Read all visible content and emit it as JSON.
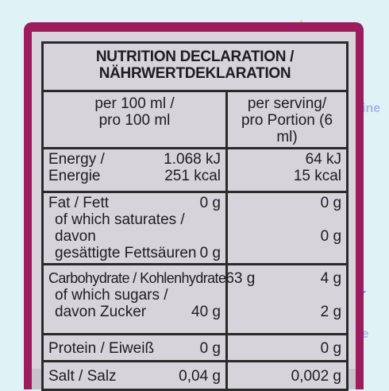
{
  "decor": {
    "star_icon": "star-icon",
    "faint_brand_1": "ine",
    "faint_brand_2": "tine"
  },
  "label": {
    "title_line1": "NUTRITION DECLARATION /",
    "title_line2": "NÄHRWERTDEKLARATION",
    "col1_head_line1": "per 100 ml /",
    "col1_head_line2": "pro 100 ml",
    "col2_head_line1": "per serving/",
    "col2_head_line2": "pro Portion (6 ml)",
    "rows": {
      "energy": {
        "name_line1": "Energy /",
        "name_line2": "Energie",
        "per100_line1": "1.068 kJ",
        "per100_line2": "251 kcal",
        "serving_line1": "64 kJ",
        "serving_line2": "15 kcal"
      },
      "fat": {
        "name_line1": "Fat / Fett",
        "name_line2": "of which saturates / davon",
        "name_line3": "gesättigte Fettsäuren",
        "per100_fat": "0 g",
        "per100_sat": "0 g",
        "serving_fat": "0 g",
        "serving_sat": "0 g"
      },
      "carbs": {
        "name_line1": "Carbohydrate / Kohlenhydrate",
        "name_line2": "of which sugars /",
        "name_line3": "davon Zucker",
        "per100_carbs": "63 g",
        "per100_sugars": "40 g",
        "serving_carbs": "4 g",
        "serving_sugars": "2 g"
      },
      "protein": {
        "name": "Protein / Eiweiß",
        "per100": "0 g",
        "serving": "0 g"
      },
      "salt": {
        "name": "Salt / Salz",
        "per100": "0,04 g",
        "serving": "0,002 g"
      }
    }
  }
}
